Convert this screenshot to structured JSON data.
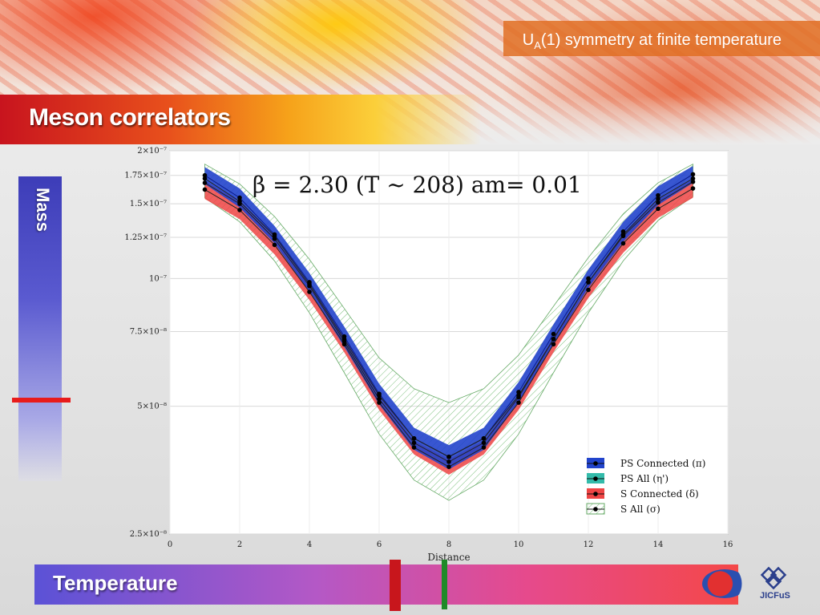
{
  "slide": {
    "topic_prefix": "U",
    "topic_sub": "A",
    "topic_suffix": "(1) symmetry at finite temperature",
    "title": "Meson correlators",
    "mass_label": "Mass",
    "temperature_label": "Temperature",
    "logo_text": "JICFuS",
    "colors": {
      "title_bar": "#e8501c",
      "mass_marker": "#e81b1b",
      "temp_red_marker": "#c8161c",
      "temp_green_marker": "#1f8a28"
    }
  },
  "chart_data": {
    "type": "line",
    "title": "β = 2.30 (T ~ 208) am= 0.01",
    "xlabel": "Distance",
    "ylabel": "",
    "xlim": [
      0,
      16
    ],
    "ylim": [
      2.5e-08,
      2e-07
    ],
    "log_y": true,
    "x_ticks": [
      0,
      2,
      4,
      6,
      8,
      10,
      12,
      14,
      16
    ],
    "y_ticks": [
      2.5e-08,
      5e-08,
      7.5e-08,
      1e-07,
      1.25e-07,
      1.5e-07,
      1.75e-07,
      2e-07
    ],
    "y_tick_labels": [
      "2.5×10⁻⁸",
      "5×10⁻⁸",
      "7.5×10⁻⁸",
      "10⁻⁷",
      "1.25×10⁻⁷",
      "1.5×10⁻⁷",
      "1.75×10⁻⁷",
      "2×10⁻⁷"
    ],
    "grid": true,
    "legend_position": "bottom-right",
    "x": [
      1,
      2,
      3,
      4,
      5,
      6,
      7,
      8,
      9,
      10,
      11,
      12,
      13,
      14,
      15
    ],
    "series": [
      {
        "name": "PS Connected (π)",
        "color": "#2244cc",
        "values": [
          1.75e-07,
          1.55e-07,
          1.27e-07,
          9.8e-08,
          7.3e-08,
          5.35e-08,
          4.2e-08,
          3.8e-08,
          4.2e-08,
          5.4e-08,
          7.4e-08,
          1e-07,
          1.29e-07,
          1.57e-07,
          1.76e-07
        ],
        "lower": [
          1.67e-07,
          1.47e-07,
          1.21e-07,
          9.3e-08,
          6.9e-08,
          5.05e-08,
          3.95e-08,
          3.55e-08,
          3.95e-08,
          5.1e-08,
          7e-08,
          9.5e-08,
          1.22e-07,
          1.49e-07,
          1.68e-07
        ],
        "upper": [
          1.83e-07,
          1.63e-07,
          1.33e-07,
          1.03e-07,
          7.7e-08,
          5.65e-08,
          4.45e-08,
          4.05e-08,
          4.45e-08,
          5.7e-08,
          7.8e-08,
          1.05e-07,
          1.36e-07,
          1.65e-07,
          1.84e-07
        ]
      },
      {
        "name": "PS All (η')",
        "color": "#33bbaa",
        "values": [
          1.68e-07,
          1.5e-07,
          1.24e-07,
          9.6e-08,
          7.1e-08,
          5.2e-08,
          4.1e-08,
          3.7e-08,
          4.1e-08,
          5.25e-08,
          7.2e-08,
          9.8e-08,
          1.26e-07,
          1.51e-07,
          1.69e-07
        ]
      },
      {
        "name": "S Connected (δ)",
        "color": "#ee4444",
        "values": [
          1.62e-07,
          1.45e-07,
          1.2e-07,
          9.3e-08,
          7e-08,
          5.1e-08,
          4e-08,
          3.6e-08,
          4e-08,
          5.1e-08,
          7e-08,
          9.4e-08,
          1.21e-07,
          1.46e-07,
          1.63e-07
        ],
        "lower": [
          1.54e-07,
          1.38e-07,
          1.14e-07,
          8.9e-08,
          6.7e-08,
          4.9e-08,
          3.85e-08,
          3.45e-08,
          3.85e-08,
          4.9e-08,
          6.7e-08,
          9e-08,
          1.15e-07,
          1.39e-07,
          1.55e-07
        ],
        "upper": [
          1.7e-07,
          1.52e-07,
          1.26e-07,
          9.7e-08,
          7.3e-08,
          5.3e-08,
          4.15e-08,
          3.75e-08,
          4.15e-08,
          5.3e-08,
          7.3e-08,
          9.8e-08,
          1.27e-07,
          1.53e-07,
          1.71e-07
        ]
      },
      {
        "name": "S All (σ)",
        "color": "#55aa55",
        "values": [
          1.72e-07,
          1.52e-07,
          1.26e-07,
          9.7e-08,
          7.2e-08,
          5.3e-08,
          4.2e-08,
          3.8e-08,
          4.2e-08,
          5.3e-08,
          7.2e-08,
          9.8e-08,
          1.27e-07,
          1.54e-07,
          1.72e-07
        ],
        "lower": [
          1.55e-07,
          1.36e-07,
          1.1e-07,
          8.3e-08,
          6e-08,
          4.3e-08,
          3.35e-08,
          3e-08,
          3.35e-08,
          4.3e-08,
          6e-08,
          8.3e-08,
          1.1e-07,
          1.37e-07,
          1.56e-07
        ],
        "upper": [
          1.86e-07,
          1.67e-07,
          1.4e-07,
          1.11e-07,
          8.5e-08,
          6.5e-08,
          5.5e-08,
          5.1e-08,
          5.5e-08,
          6.6e-08,
          8.6e-08,
          1.12e-07,
          1.42e-07,
          1.68e-07,
          1.86e-07
        ]
      }
    ]
  }
}
